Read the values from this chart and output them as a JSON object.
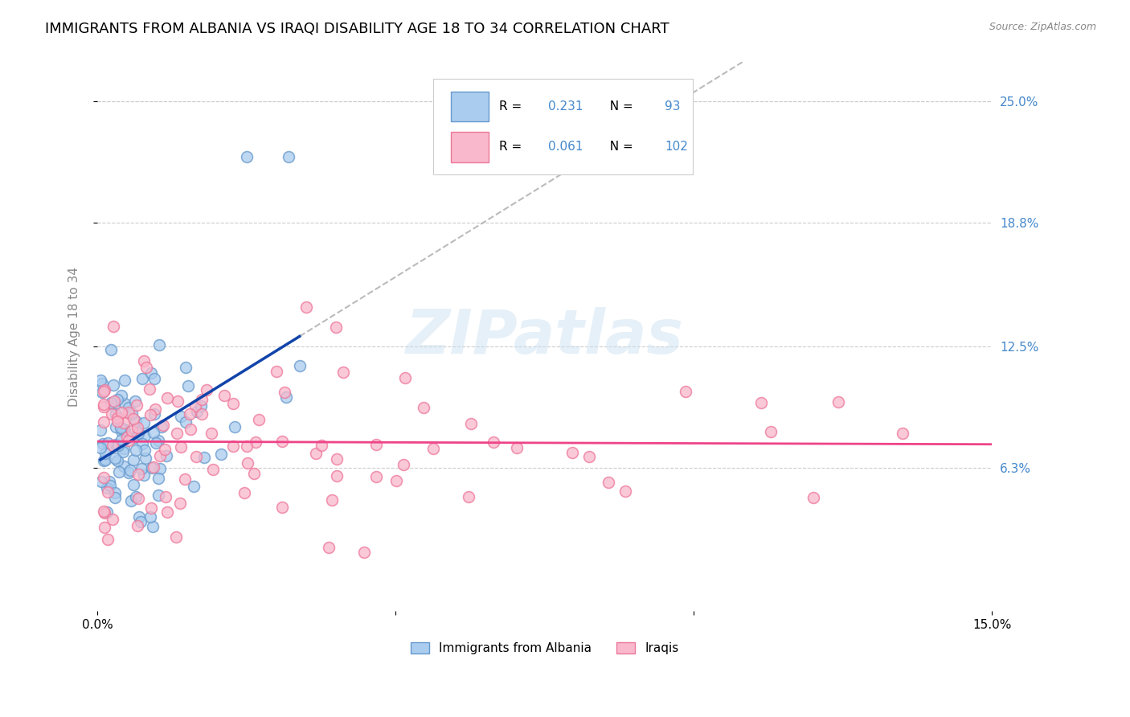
{
  "title": "IMMIGRANTS FROM ALBANIA VS IRAQI DISABILITY AGE 18 TO 34 CORRELATION CHART",
  "source": "Source: ZipAtlas.com",
  "ylabel": "Disability Age 18 to 34",
  "xlim": [
    0.0,
    0.15
  ],
  "ylim": [
    -0.01,
    0.27
  ],
  "ytick_labels": [
    "6.3%",
    "12.5%",
    "18.8%",
    "25.0%"
  ],
  "ytick_values": [
    0.063,
    0.125,
    0.188,
    0.25
  ],
  "grid_color": "#cccccc",
  "background_color": "#ffffff",
  "albania_color": "#aaccee",
  "iraq_color": "#f9b8cc",
  "albania_edge_color": "#6699cc",
  "iraq_edge_color": "#ee7799",
  "albania_R": 0.231,
  "albania_N": 93,
  "iraq_R": 0.061,
  "iraq_N": 102,
  "albania_line_color": "#1144aa",
  "iraq_line_color": "#ee4488",
  "trendline_color": "#aaaaaa",
  "title_fontsize": 13,
  "label_fontsize": 11,
  "tick_fontsize": 11,
  "watermark": "ZIPatlas"
}
